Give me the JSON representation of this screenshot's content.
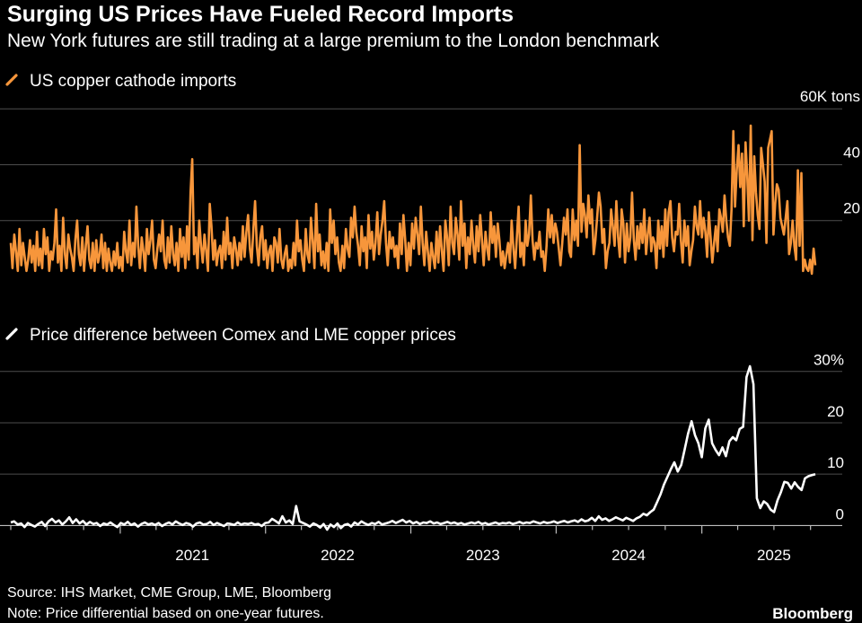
{
  "header": {
    "title": "Surging US Prices Have Fueled Record Imports",
    "subtitle": "New York futures are still trading at a large premium to the London benchmark"
  },
  "footer": {
    "source": "Source: IHS Market, CME Group, LME, Bloomberg",
    "note": "Note: Price differential based on one-year futures.",
    "brand": "Bloomberg"
  },
  "colors": {
    "imports": "#f7963b",
    "spread": "#ffffff",
    "grid": "#4d4d4d",
    "background": "#000000"
  },
  "chart_data": [
    {
      "type": "line",
      "legend": "US copper cathode imports",
      "unit_label": "60K tons",
      "yticks": [
        20,
        40,
        60
      ],
      "ytick_labels": [
        "20",
        "40",
        "60K tons"
      ],
      "ylim": [
        0,
        62
      ],
      "x_start": "2020-04-01",
      "x_end": "2025-10-13",
      "grid": true,
      "series": [
        {
          "name": "US copper cathode imports",
          "values": [
            12,
            3,
            15,
            9,
            2,
            17,
            4,
            12,
            7,
            2,
            6,
            13,
            5,
            11,
            2,
            16,
            4,
            10,
            3,
            17,
            8,
            14,
            2,
            9,
            6,
            12,
            24,
            5,
            11,
            2,
            21,
            8,
            3,
            15,
            10,
            7,
            2,
            13,
            20,
            8,
            4,
            14,
            2,
            11,
            18,
            6,
            3,
            12,
            2,
            13,
            5,
            8,
            15,
            3,
            12,
            2,
            10,
            5,
            2,
            9,
            4,
            12,
            3,
            7,
            2,
            16,
            9,
            5,
            20,
            4,
            12,
            7,
            25,
            11,
            3,
            14,
            9,
            2,
            17,
            8,
            13,
            20,
            6,
            3,
            10,
            15,
            9,
            20,
            6,
            3,
            14,
            5,
            18,
            8,
            4,
            12,
            2,
            17,
            7,
            14,
            3,
            18,
            6,
            30,
            42,
            8,
            14,
            3,
            20,
            11,
            5,
            15,
            9,
            2,
            26,
            18,
            6,
            13,
            4,
            9,
            11,
            3,
            16,
            6,
            21,
            8,
            12,
            3,
            14,
            10,
            4,
            12,
            6,
            18,
            7,
            16,
            22,
            10,
            5,
            17,
            27,
            11,
            4,
            14,
            18,
            6,
            13,
            3,
            9,
            11,
            2,
            14,
            12,
            5,
            17,
            6,
            3,
            8,
            11,
            2,
            6,
            3,
            12,
            4,
            20,
            9,
            13,
            6,
            2,
            17,
            8,
            5,
            21,
            13,
            3,
            26,
            9,
            15,
            4,
            9,
            3,
            12,
            2,
            24,
            12,
            20,
            8,
            14,
            5,
            2,
            11,
            3,
            17,
            10,
            7,
            21,
            14,
            25,
            16,
            11,
            4,
            18,
            9,
            14,
            3,
            22,
            10,
            16,
            6,
            12,
            23,
            8,
            15,
            20,
            27,
            12,
            4,
            16,
            10,
            14,
            7,
            11,
            3,
            19,
            8,
            22,
            13,
            2,
            12,
            4,
            19,
            10,
            21,
            15,
            8,
            25,
            12,
            4,
            16,
            9,
            2,
            12,
            7,
            3,
            16,
            5,
            18,
            9,
            2,
            20,
            14,
            4,
            25,
            12,
            8,
            21,
            15,
            6,
            27,
            11,
            19,
            3,
            14,
            8,
            20,
            11,
            5,
            18,
            9,
            22,
            13,
            4,
            16,
            10,
            6,
            23,
            12,
            18,
            7,
            19,
            13,
            4,
            9,
            3,
            8,
            12,
            5,
            20,
            10,
            3,
            14,
            25,
            7,
            12,
            4,
            20,
            11,
            15,
            29,
            13,
            6,
            12,
            10,
            16,
            7,
            9,
            2,
            11,
            24,
            14,
            22,
            12,
            19,
            16,
            10,
            4,
            12,
            21,
            15,
            24,
            9,
            7,
            24,
            13,
            20,
            11,
            47,
            16,
            26,
            22,
            14,
            29,
            19,
            24,
            8,
            13,
            21,
            30,
            25,
            12,
            17,
            3,
            9,
            12,
            24,
            18,
            11,
            27,
            14,
            7,
            24,
            19,
            5,
            19,
            9,
            14,
            30,
            13,
            6,
            18,
            10,
            19,
            12,
            24,
            8,
            15,
            21,
            9,
            14,
            12,
            3,
            20,
            10,
            18,
            7,
            24,
            11,
            23,
            27,
            14,
            9,
            16,
            15,
            26,
            13,
            5,
            20,
            11,
            18,
            4,
            9,
            13,
            25,
            18,
            15,
            27,
            14,
            21,
            16,
            7,
            23,
            14,
            5,
            12,
            18,
            9,
            24,
            21,
            16,
            29,
            20,
            14,
            11,
            24,
            52,
            25,
            38,
            47,
            32,
            44,
            18,
            48,
            36,
            20,
            54,
            13,
            43,
            30,
            22,
            17,
            46,
            40,
            34,
            12,
            46,
            49,
            52,
            15,
            26,
            33,
            31,
            21,
            18,
            15,
            21,
            27,
            8,
            12,
            20,
            11,
            6,
            38,
            11,
            37,
            2,
            6,
            3,
            2,
            6,
            1,
            10,
            4
          ]
        }
      ]
    },
    {
      "type": "line",
      "legend": "Price difference between Comex and LME copper prices",
      "unit_label": "30%",
      "yticks": [
        0,
        10,
        20,
        30
      ],
      "ytick_labels": [
        "0",
        "10",
        "20",
        "30%"
      ],
      "ylim": [
        -1.5,
        31
      ],
      "x_start": "2020-04-01",
      "x_end": "2025-10-13",
      "xticks": [
        "2021",
        "2022",
        "2023",
        "2024",
        "2025"
      ],
      "grid": true,
      "series": [
        {
          "name": "Price difference between Comex and LME copper prices",
          "values": [
            0.6,
            0.8,
            0.2,
            0.4,
            -0.3,
            0.5,
            0.1,
            -0.2,
            0.3,
            0.7,
            -0.1,
            0.8,
            1.3,
            0.6,
            1.0,
            0.2,
            0.8,
            1.6,
            0.5,
            1.2,
            0.4,
            0.9,
            0.2,
            0.7,
            0.3,
            0.5,
            -0.1,
            0.4,
            0.2,
            0.6,
            0.1,
            -0.3,
            0.5,
            0.2,
            0.7,
            0.1,
            0.4,
            -0.2,
            0.3,
            0.6,
            0.2,
            0.4,
            0.1,
            0.5,
            -0.1,
            0.3,
            0.6,
            0.2,
            0.8,
            0.4,
            0.1,
            0.5,
            0.3,
            -0.2,
            0.4,
            0.6,
            0.2,
            0.3,
            0.7,
            0.1,
            0.5,
            0.2,
            -0.1,
            0.4,
            0.3,
            0.1,
            0.6,
            0.2,
            0.4,
            0.3,
            0.5,
            0.2,
            0.3,
            -0.1,
            0.5,
            0.6,
            1.3,
            0.9,
            0.4,
            1.8,
            0.6,
            1.0,
            0.3,
            3.8,
            0.8,
            0.5,
            0.2,
            -0.2,
            0.4,
            0.1,
            -0.4,
            0.3,
            -0.8,
            0.2,
            -0.3,
            0.4,
            -0.5,
            0.1,
            0.3,
            -0.2,
            0.6,
            0.2,
            0.8,
            0.4,
            0.1,
            0.5,
            0.3,
            0.7,
            0.2,
            0.4,
            0.6,
            0.9,
            0.5,
            0.8,
            1.1,
            0.6,
            0.9,
            0.4,
            0.7,
            0.3,
            0.6,
            0.5,
            0.8,
            0.4,
            0.6,
            0.3,
            0.5,
            0.7,
            0.4,
            0.6,
            0.3,
            0.5,
            0.2,
            0.4,
            0.6,
            0.4,
            0.7,
            0.3,
            0.5,
            0.2,
            0.4,
            0.6,
            0.3,
            0.5,
            0.4,
            0.6,
            0.3,
            0.5,
            0.7,
            0.4,
            0.6,
            0.5,
            0.8,
            0.6,
            0.4,
            0.7,
            0.5,
            0.6,
            0.8,
            0.5,
            0.7,
            0.9,
            0.6,
            0.8,
            1.0,
            0.7,
            1.2,
            0.8,
            1.0,
            1.5,
            0.9,
            1.8,
            1.1,
            1.4,
            0.9,
            1.2,
            1.6,
            1.3,
            1.0,
            1.5,
            1.2,
            0.9,
            1.4,
            1.7,
            2.3,
            2.0,
            2.6,
            3.1,
            4.6,
            6.1,
            8.0,
            9.5,
            11.0,
            12.3,
            10.5,
            11.8,
            14.8,
            17.9,
            20.3,
            17.6,
            16.0,
            13.3,
            18.9,
            20.6,
            16.0,
            14.7,
            13.7,
            15.2,
            13.5,
            16.4,
            17.2,
            16.6,
            18.8,
            19.2,
            28.9,
            31.0,
            27.5,
            5.3,
            3.4,
            4.7,
            4.2,
            3.1,
            2.6,
            4.9,
            6.5,
            8.5,
            8.3,
            7.2,
            8.4,
            7.5,
            6.9,
            9.2,
            9.6,
            9.8,
            10.0
          ]
        }
      ]
    }
  ]
}
